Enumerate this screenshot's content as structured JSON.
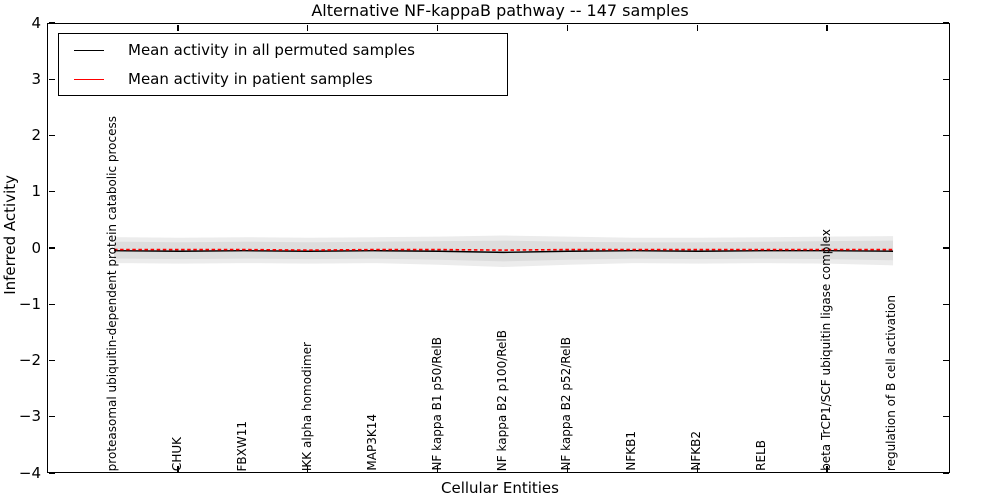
{
  "title": "Alternative NF-kappaB pathway -- 147 samples",
  "axes": {
    "ylabel": "Inferred Activity",
    "xlabel": "Cellular Entities"
  },
  "legend": {
    "entries": [
      {
        "label": "Mean activity in all permuted samples",
        "color": "#000000"
      },
      {
        "label": "Mean activity in patient samples",
        "color": "#ff0000"
      }
    ]
  },
  "chart_data": {
    "type": "line",
    "title": "Alternative NF-kappaB pathway -- 147 samples",
    "xlabel": "Cellular Entities",
    "ylabel": "Inferred Activity",
    "ylim": [
      -4,
      4
    ],
    "yticks": [
      4,
      3,
      2,
      1,
      0,
      -1,
      -2,
      -3,
      -4
    ],
    "grid": false,
    "legend_position": "upper left",
    "categories": [
      "proteasomal ubiquitin-dependent protein catabolic process",
      "CHUK",
      "FBXW11",
      "IKK alpha homodimer",
      "MAP3K14",
      "NF kappa B1 p50/RelB",
      "NF kappa B2 p100/RelB",
      "NF kappa B2 p52/RelB",
      "NFKB1",
      "NFKB2",
      "RELB",
      "beta TrCP1/SCF ubiquitin ligase complex",
      "regulation of B cell activation"
    ],
    "top_bottom_tick_category_indices": [
      1,
      3,
      5,
      7,
      9,
      11
    ],
    "series": [
      {
        "name": "Mean activity in all permuted samples",
        "color": "#000000",
        "style": "solid",
        "values": [
          -0.03,
          -0.04,
          -0.03,
          -0.04,
          -0.03,
          -0.04,
          -0.06,
          -0.04,
          -0.03,
          -0.04,
          -0.03,
          -0.03,
          -0.04
        ]
      },
      {
        "name": "Mean activity in patient samples",
        "color": "#ff0000",
        "style": "dashed",
        "values": [
          -0.01,
          -0.01,
          -0.01,
          -0.02,
          -0.01,
          -0.01,
          -0.02,
          -0.01,
          -0.01,
          -0.01,
          -0.01,
          -0.01,
          -0.01
        ]
      }
    ],
    "bands": [
      {
        "name": "permuted-activity-spread-outer",
        "color": "#ececec",
        "upper": [
          0.21,
          0.2,
          0.21,
          0.2,
          0.21,
          0.22,
          0.24,
          0.22,
          0.2,
          0.2,
          0.21,
          0.22,
          0.23
        ],
        "lower": [
          -0.25,
          -0.26,
          -0.25,
          -0.26,
          -0.25,
          -0.28,
          -0.32,
          -0.28,
          -0.25,
          -0.26,
          -0.25,
          -0.26,
          -0.29
        ]
      },
      {
        "name": "permuted-activity-spread-inner",
        "color": "#dddddd",
        "upper": [
          0.13,
          0.12,
          0.13,
          0.12,
          0.13,
          0.14,
          0.15,
          0.13,
          0.12,
          0.12,
          0.13,
          0.14,
          0.15
        ],
        "lower": [
          -0.17,
          -0.18,
          -0.17,
          -0.18,
          -0.17,
          -0.19,
          -0.22,
          -0.19,
          -0.17,
          -0.18,
          -0.17,
          -0.18,
          -0.2
        ]
      }
    ]
  }
}
